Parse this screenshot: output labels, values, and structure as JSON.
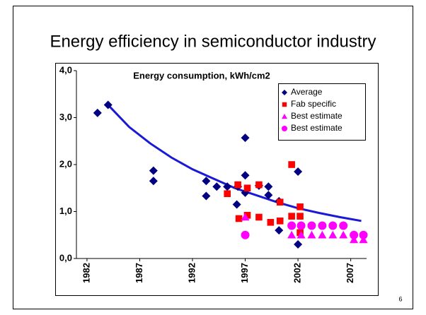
{
  "slide": {
    "title": "Energy efficiency in semiconductor industry",
    "number": "6"
  },
  "chart_data": {
    "type": "scatter",
    "title": "Energy consumption, kWh/cm2",
    "xlim": [
      1981,
      2008.5
    ],
    "xticks": [
      1982,
      1987,
      1992,
      1997,
      2002,
      2007
    ],
    "ylim": [
      0,
      4
    ],
    "yticks": [
      {
        "value": 0,
        "label": "0,0"
      },
      {
        "value": 1,
        "label": "1,0"
      },
      {
        "value": 2,
        "label": "2,0"
      },
      {
        "value": 3,
        "label": "3,0"
      },
      {
        "value": 4,
        "label": "4,0"
      }
    ],
    "grid": false,
    "legend": "upper right",
    "series": [
      {
        "name": "Average",
        "color": "#000080",
        "marker": "diamond",
        "x": [
          1983,
          1984,
          1988.3,
          1988.3,
          1993.3,
          1993.3,
          1994.3,
          1995.3,
          1996.2,
          1996.3,
          1997,
          1997,
          1997,
          1998.3,
          1999.2,
          1999.2,
          2000.2,
          2000.2,
          2002,
          2002
        ],
        "values": [
          3.1,
          3.27,
          1.87,
          1.65,
          1.65,
          1.33,
          1.53,
          1.53,
          1.15,
          1.53,
          2.57,
          1.77,
          1.4,
          1.55,
          1.53,
          1.35,
          1.22,
          0.6,
          1.85,
          0.3
        ]
      },
      {
        "name": "Fab specific",
        "color": "#ff0000",
        "marker": "square",
        "x": [
          1995.3,
          1996.3,
          1996.4,
          1997.2,
          1997.2,
          1998.3,
          1998.3,
          1999.4,
          2000.3,
          2000.3,
          2001.4,
          2001.4,
          2002.2,
          2002.2,
          2002.2
        ],
        "values": [
          1.38,
          1.57,
          0.85,
          1.5,
          0.92,
          1.57,
          0.88,
          0.77,
          1.2,
          0.8,
          2.0,
          0.9,
          1.1,
          0.9,
          0.55
        ]
      },
      {
        "name": "Best estimate",
        "color": "#ff00ff",
        "marker": "triangle",
        "x": [
          1997,
          2001.4,
          2002.3,
          2003.3,
          2004.3,
          2005.3,
          2006.3,
          2007.3,
          2008.2
        ],
        "values": [
          0.88,
          0.5,
          0.5,
          0.5,
          0.5,
          0.5,
          0.5,
          0.4,
          0.4
        ]
      },
      {
        "name": "Best estimate",
        "color": "#ff00ff",
        "marker": "circle",
        "x": [
          1997,
          2001.4,
          2002.3,
          2003.3,
          2004.3,
          2005.3,
          2006.3,
          2007.3,
          2008.2
        ],
        "values": [
          0.5,
          0.7,
          0.7,
          0.7,
          0.7,
          0.7,
          0.7,
          0.5,
          0.5
        ]
      }
    ],
    "trendline": {
      "color": "#1a1ad6",
      "x": [
        1984,
        1986,
        1988,
        1990,
        1992,
        1994,
        1996,
        1998,
        2000,
        2002,
        2004,
        2006,
        2008
      ],
      "values": [
        3.27,
        2.8,
        2.45,
        2.15,
        1.9,
        1.7,
        1.5,
        1.35,
        1.2,
        1.07,
        0.97,
        0.88,
        0.8
      ]
    }
  }
}
